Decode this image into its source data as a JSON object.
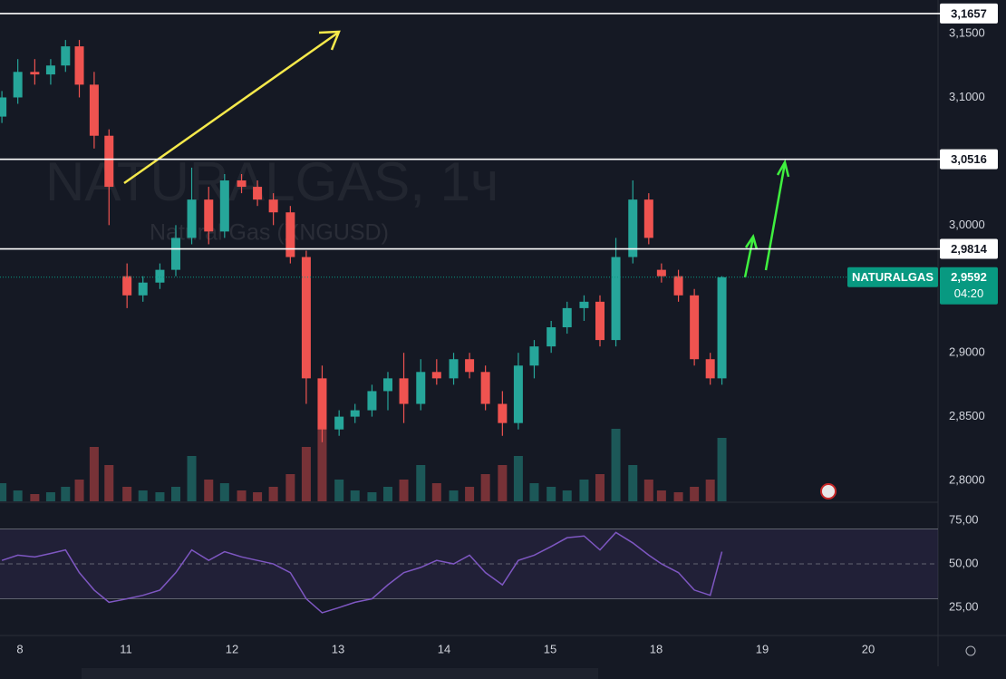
{
  "chart_data": {
    "type": "candlestick",
    "watermark": {
      "title": "NATURALGAS, 1ч",
      "subtitle": "Natural Gas (XNGUSD)"
    },
    "x": [
      -0.17,
      -0.02,
      0.14,
      0.29,
      0.43,
      0.56,
      0.7,
      0.84,
      1.01,
      1.16,
      1.32,
      1.47,
      1.62,
      1.78,
      1.93,
      2.09,
      2.24,
      2.39,
      2.55,
      2.7,
      2.85,
      3.01,
      3.16,
      3.32,
      3.47,
      3.62,
      3.78,
      3.93,
      4.09,
      4.24,
      4.39,
      4.55,
      4.7,
      4.85,
      5.01,
      5.16,
      5.32,
      5.47,
      5.62,
      5.78,
      5.93,
      6.05,
      6.21,
      6.36,
      6.51,
      6.62
    ],
    "open": [
      3.085,
      3.1,
      3.12,
      3.118,
      3.125,
      3.14,
      3.11,
      3.07,
      2.96,
      2.945,
      2.955,
      2.965,
      2.99,
      3.02,
      2.995,
      3.035,
      3.03,
      3.02,
      3.01,
      2.975,
      2.88,
      2.84,
      2.85,
      2.855,
      2.87,
      2.88,
      2.86,
      2.885,
      2.88,
      2.895,
      2.885,
      2.86,
      2.845,
      2.89,
      2.905,
      2.92,
      2.935,
      2.94,
      2.91,
      2.975,
      3.02,
      2.965,
      2.96,
      2.945,
      2.895,
      2.88
    ],
    "high": [
      3.105,
      3.13,
      3.13,
      3.13,
      3.145,
      3.145,
      3.12,
      3.075,
      2.97,
      2.96,
      2.97,
      3.0,
      3.045,
      3.03,
      3.04,
      3.04,
      3.035,
      3.025,
      3.015,
      2.98,
      2.89,
      2.855,
      2.86,
      2.875,
      2.885,
      2.9,
      2.895,
      2.895,
      2.9,
      2.9,
      2.89,
      2.87,
      2.9,
      2.91,
      2.925,
      2.94,
      2.945,
      2.945,
      2.99,
      3.035,
      3.025,
      2.97,
      2.965,
      2.95,
      2.9,
      2.96
    ],
    "low": [
      3.08,
      3.095,
      3.11,
      3.11,
      3.12,
      3.1,
      3.06,
      3.0,
      2.935,
      2.94,
      2.95,
      2.96,
      2.985,
      2.985,
      2.99,
      3.025,
      3.015,
      3.0,
      2.97,
      2.86,
      2.83,
      2.835,
      2.845,
      2.85,
      2.855,
      2.845,
      2.855,
      2.875,
      2.875,
      2.88,
      2.855,
      2.835,
      2.84,
      2.88,
      2.9,
      2.915,
      2.925,
      2.905,
      2.905,
      2.97,
      2.985,
      2.955,
      2.94,
      2.89,
      2.875,
      2.875
    ],
    "close": [
      3.1,
      3.12,
      3.118,
      3.125,
      3.14,
      3.11,
      3.07,
      3.03,
      2.945,
      2.955,
      2.965,
      2.99,
      3.02,
      2.995,
      3.035,
      3.03,
      3.02,
      3.01,
      2.975,
      2.88,
      2.84,
      2.85,
      2.855,
      2.87,
      2.88,
      2.86,
      2.885,
      2.88,
      2.895,
      2.885,
      2.86,
      2.845,
      2.89,
      2.905,
      2.92,
      2.935,
      2.94,
      2.91,
      2.975,
      3.02,
      2.99,
      2.96,
      2.945,
      2.895,
      2.88,
      2.9592
    ],
    "volume": [
      10,
      6,
      4,
      5,
      8,
      12,
      30,
      20,
      8,
      6,
      5,
      8,
      25,
      12,
      10,
      6,
      5,
      8,
      15,
      30,
      40,
      12,
      6,
      5,
      8,
      12,
      20,
      10,
      6,
      8,
      15,
      20,
      25,
      10,
      8,
      6,
      12,
      15,
      40,
      20,
      12,
      6,
      5,
      8,
      12,
      35
    ],
    "rsi": [
      52,
      55,
      54,
      56,
      58,
      45,
      35,
      28,
      30,
      32,
      35,
      45,
      58,
      52,
      57,
      54,
      52,
      50,
      45,
      30,
      22,
      25,
      28,
      30,
      38,
      45,
      48,
      52,
      50,
      55,
      45,
      38,
      52,
      55,
      60,
      65,
      66,
      58,
      68,
      62,
      55,
      50,
      45,
      35,
      32,
      57
    ],
    "up_color": "#26a69a",
    "down_color": "#ef5350",
    "rsi_color": "#7e57c2",
    "xlim": [
      -0.188,
      8.658
    ],
    "xticks": [
      {
        "value": 0,
        "label": "8"
      },
      {
        "value": 1,
        "label": "11"
      },
      {
        "value": 2,
        "label": "12"
      },
      {
        "value": 3,
        "label": "13"
      },
      {
        "value": 4,
        "label": "14"
      },
      {
        "value": 5,
        "label": "15"
      },
      {
        "value": 6,
        "label": "18"
      },
      {
        "value": 7,
        "label": "19"
      },
      {
        "value": 8,
        "label": "20"
      }
    ],
    "ylim": [
      2.7837,
      3.1763
    ],
    "yticks": [
      {
        "value": 2.8,
        "label": "2,8000"
      },
      {
        "value": 2.85,
        "label": "2,8500"
      },
      {
        "value": 2.9,
        "label": "2,9000"
      },
      {
        "value": 3.0,
        "label": "3,0000"
      },
      {
        "value": 3.1,
        "label": "3,1000"
      },
      {
        "value": 3.15,
        "label": "3,1500"
      }
    ],
    "levels": [
      {
        "value": 3.1657,
        "label": "3,1657"
      },
      {
        "value": 3.0516,
        "label": "3,0516"
      },
      {
        "value": 2.9814,
        "label": "2,9814"
      }
    ],
    "last_price": {
      "name": "NATURALGAS",
      "value": 2.9592,
      "label": "2,9592",
      "countdown": "04:20"
    },
    "volume_lim": [
      0,
      100
    ],
    "rsi_panel": {
      "ylim": [
        9.5,
        84.3
      ],
      "band": [
        30,
        70
      ],
      "mid": 50,
      "yticks": [
        {
          "value": 25,
          "label": "25,00"
        },
        {
          "value": 50,
          "label": "50,00"
        },
        {
          "value": 75,
          "label": "75,00"
        }
      ]
    }
  }
}
